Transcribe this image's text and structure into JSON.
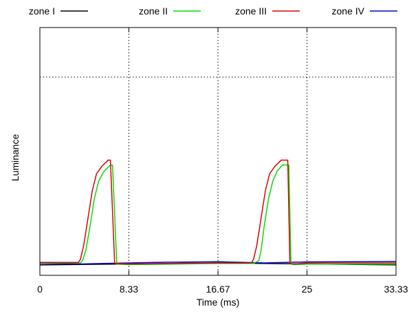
{
  "chart_data": {
    "type": "line",
    "xlabel": "Time (ms)",
    "ylabel": "Luminance",
    "xlim": [
      0,
      33.33
    ],
    "ylim": [
      0,
      1
    ],
    "x_ticks": [
      {
        "value": 0,
        "label": "0"
      },
      {
        "value": 8.33,
        "label": "8.33"
      },
      {
        "value": 16.67,
        "label": "16.67"
      },
      {
        "value": 25,
        "label": "25"
      },
      {
        "value": 33.33,
        "label": "33.33"
      }
    ],
    "grid": {
      "x": [
        8.33,
        16.67,
        25
      ],
      "y": [
        0.8
      ],
      "style": "dotted"
    },
    "legend_position": "top",
    "series": [
      {
        "name": "zone I",
        "color": "#000000",
        "x": [
          0,
          16.67,
          33.33
        ],
        "y": [
          0.042,
          0.05,
          0.042
        ]
      },
      {
        "name": "zone II",
        "color": "#00dd00",
        "x": [
          0,
          3.8,
          4.0,
          4.3,
          4.7,
          5.1,
          5.5,
          6.0,
          6.6,
          6.8,
          7.2,
          8.33,
          12,
          16.67,
          20,
          20.5,
          20.7,
          21.0,
          21.4,
          21.8,
          22.2,
          22.7,
          23.3,
          23.5,
          23.9,
          25,
          29,
          33.33
        ],
        "y": [
          0.05,
          0.05,
          0.06,
          0.1,
          0.2,
          0.31,
          0.38,
          0.42,
          0.445,
          0.445,
          0.045,
          0.043,
          0.045,
          0.048,
          0.048,
          0.06,
          0.1,
          0.2,
          0.31,
          0.38,
          0.42,
          0.445,
          0.445,
          0.045,
          0.043,
          0.045,
          0.045,
          0.045
        ]
      },
      {
        "name": "zone III",
        "color": "#dd0000",
        "x": [
          0,
          3.6,
          3.8,
          4.1,
          4.5,
          4.9,
          5.3,
          5.8,
          6.4,
          6.6,
          7.0,
          8.33,
          12,
          16.67,
          19.8,
          20.0,
          20.3,
          20.7,
          21.1,
          21.5,
          22.0,
          22.6,
          23.2,
          23.4,
          23.8,
          25,
          29,
          33.33
        ],
        "y": [
          0.052,
          0.052,
          0.065,
          0.12,
          0.23,
          0.34,
          0.41,
          0.44,
          0.465,
          0.465,
          0.048,
          0.046,
          0.048,
          0.05,
          0.05,
          0.065,
          0.12,
          0.23,
          0.34,
          0.41,
          0.44,
          0.465,
          0.465,
          0.048,
          0.046,
          0.05,
          0.05,
          0.05
        ]
      },
      {
        "name": "zone IV",
        "color": "#0000dd",
        "x": [
          0,
          4,
          8.33,
          12,
          16.67,
          21,
          25,
          29,
          33.33
        ],
        "y": [
          0.048,
          0.046,
          0.05,
          0.053,
          0.055,
          0.05,
          0.054,
          0.055,
          0.056
        ]
      }
    ]
  }
}
